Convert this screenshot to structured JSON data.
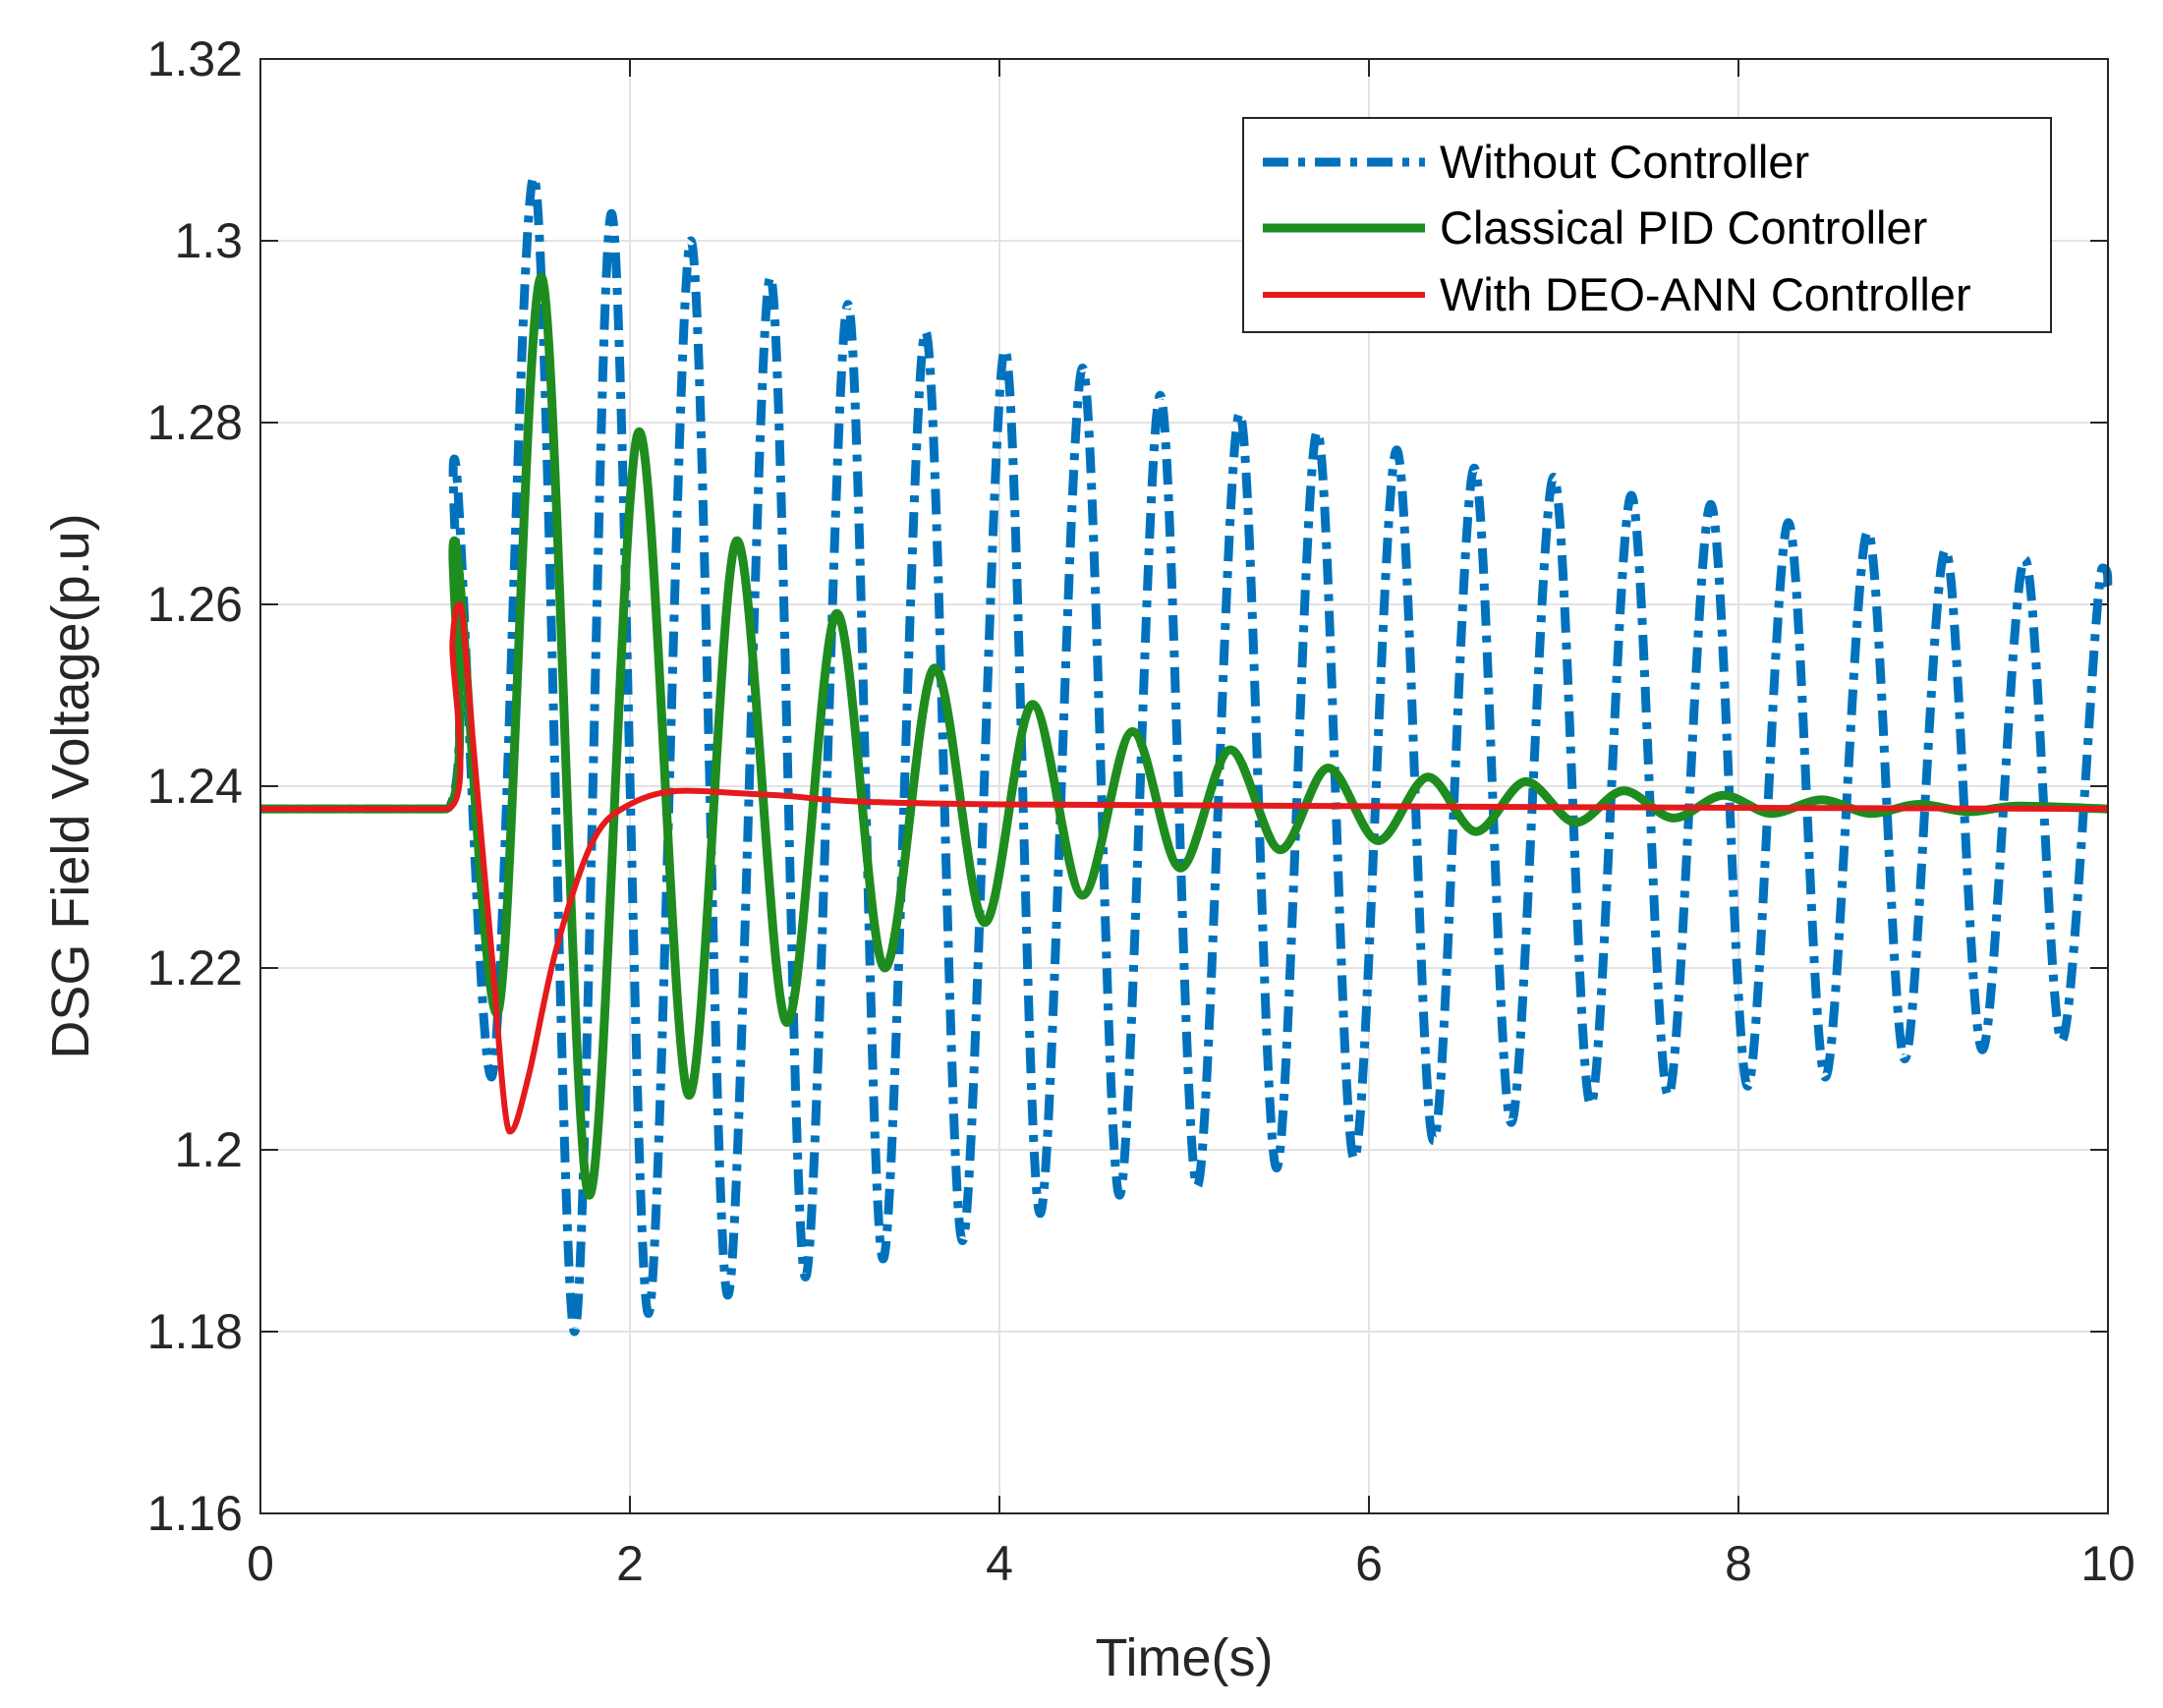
{
  "chart_data": {
    "type": "line",
    "title": "",
    "xlabel": "Time(s)",
    "ylabel": "DSG Field Voltage(p.u)",
    "xlim": [
      0,
      10
    ],
    "ylim": [
      1.16,
      1.32
    ],
    "xticks": [
      0,
      2,
      4,
      6,
      8,
      10
    ],
    "xtick_labels": [
      "0",
      "2",
      "4",
      "6",
      "8",
      "10"
    ],
    "yticks": [
      1.16,
      1.18,
      1.2,
      1.22,
      1.24,
      1.26,
      1.28,
      1.3,
      1.32
    ],
    "ytick_labels": [
      "1.16",
      "1.18",
      "1.2",
      "1.22",
      "1.24",
      "1.26",
      "1.28",
      "1.3",
      "1.32"
    ],
    "grid": true,
    "legend_position": "top-right",
    "series": [
      {
        "name": "Without Controller",
        "color": "#0072BD",
        "style": "dash-dot",
        "x": [
          0,
          1.0,
          1.05,
          1.25,
          1.48,
          1.7,
          1.9,
          2.1,
          2.33,
          2.53,
          2.76,
          2.95,
          3.18,
          3.37,
          3.6,
          3.8,
          4.03,
          4.22,
          4.45,
          4.65,
          4.87,
          5.07,
          5.3,
          5.5,
          5.72,
          5.92,
          6.15,
          6.35,
          6.57,
          6.77,
          7.0,
          7.2,
          7.42,
          7.62,
          7.85,
          8.05,
          8.27,
          8.47,
          8.7,
          8.9,
          9.12,
          9.32,
          9.55,
          9.75,
          9.97,
          10.0
        ],
        "y": [
          1.2375,
          1.2375,
          1.276,
          1.208,
          1.307,
          1.18,
          1.303,
          1.182,
          1.3,
          1.184,
          1.296,
          1.186,
          1.293,
          1.188,
          1.29,
          1.19,
          1.288,
          1.193,
          1.286,
          1.195,
          1.283,
          1.196,
          1.281,
          1.198,
          1.279,
          1.199,
          1.277,
          1.201,
          1.275,
          1.203,
          1.274,
          1.205,
          1.272,
          1.206,
          1.271,
          1.207,
          1.269,
          1.208,
          1.268,
          1.21,
          1.266,
          1.211,
          1.265,
          1.212,
          1.264,
          1.262
        ]
      },
      {
        "name": "Classical PID Controller",
        "color": "#1E8C1E",
        "style": "solid",
        "x": [
          0,
          1.0,
          1.05,
          1.28,
          1.52,
          1.78,
          2.05,
          2.32,
          2.58,
          2.85,
          3.12,
          3.38,
          3.65,
          3.92,
          4.18,
          4.45,
          4.72,
          4.98,
          5.25,
          5.52,
          5.78,
          6.05,
          6.32,
          6.58,
          6.85,
          7.12,
          7.38,
          7.65,
          7.92,
          8.18,
          8.45,
          8.72,
          8.98,
          9.25,
          9.52,
          10.0
        ],
        "y": [
          1.2375,
          1.2375,
          1.267,
          1.215,
          1.296,
          1.195,
          1.279,
          1.206,
          1.267,
          1.214,
          1.259,
          1.22,
          1.253,
          1.225,
          1.249,
          1.228,
          1.246,
          1.231,
          1.244,
          1.233,
          1.242,
          1.234,
          1.241,
          1.235,
          1.2405,
          1.236,
          1.2395,
          1.2365,
          1.239,
          1.237,
          1.2385,
          1.237,
          1.238,
          1.2372,
          1.2378,
          1.2375
        ]
      },
      {
        "name": "With DEO-ANN Controller",
        "color": "#E41A1C",
        "style": "solid",
        "x": [
          0,
          1.0,
          1.04,
          1.08,
          1.15,
          1.25,
          1.35,
          1.45,
          1.6,
          1.8,
          2.0,
          2.3,
          2.8,
          4.0,
          10.0
        ],
        "y": [
          1.2375,
          1.2375,
          1.256,
          1.26,
          1.245,
          1.222,
          1.202,
          1.208,
          1.222,
          1.234,
          1.238,
          1.2395,
          1.239,
          1.238,
          1.2375
        ]
      }
    ]
  }
}
